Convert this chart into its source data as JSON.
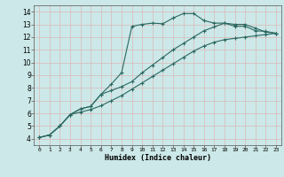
{
  "xlabel": "Humidex (Indice chaleur)",
  "bg_color": "#cce8e8",
  "grid_color": "#ddb8b8",
  "line_color": "#2a6860",
  "xlim": [
    -0.5,
    23.5
  ],
  "ylim": [
    3.5,
    14.5
  ],
  "xticks": [
    0,
    1,
    2,
    3,
    4,
    5,
    6,
    7,
    8,
    9,
    10,
    11,
    12,
    13,
    14,
    15,
    16,
    17,
    18,
    19,
    20,
    21,
    22,
    23
  ],
  "yticks": [
    4,
    5,
    6,
    7,
    8,
    9,
    10,
    11,
    12,
    13,
    14
  ],
  "line1_x": [
    0,
    1,
    2,
    3,
    4,
    5,
    6,
    7,
    8,
    9,
    10,
    11,
    12,
    13,
    14,
    15,
    16,
    17,
    18,
    19,
    20,
    21,
    22,
    23
  ],
  "line1_y": [
    4.1,
    4.3,
    5.0,
    5.9,
    6.35,
    6.55,
    7.5,
    8.3,
    9.2,
    12.85,
    13.0,
    13.1,
    13.05,
    13.5,
    13.85,
    13.85,
    13.3,
    13.1,
    13.1,
    12.85,
    12.85,
    12.5,
    12.45,
    12.3
  ],
  "line2_x": [
    0,
    1,
    2,
    3,
    4,
    5,
    6,
    7,
    8,
    9,
    10,
    11,
    12,
    13,
    14,
    15,
    16,
    17,
    18,
    19,
    20,
    21,
    22,
    23
  ],
  "line2_y": [
    4.1,
    4.3,
    5.0,
    5.9,
    6.35,
    6.55,
    7.5,
    7.8,
    8.1,
    8.5,
    9.2,
    9.8,
    10.4,
    11.0,
    11.5,
    12.0,
    12.5,
    12.8,
    13.1,
    13.0,
    13.0,
    12.7,
    12.4,
    12.3
  ],
  "line3_x": [
    0,
    1,
    2,
    3,
    4,
    5,
    6,
    7,
    8,
    9,
    10,
    11,
    12,
    13,
    14,
    15,
    16,
    17,
    18,
    19,
    20,
    21,
    22,
    23
  ],
  "line3_y": [
    4.1,
    4.3,
    5.0,
    5.9,
    6.1,
    6.3,
    6.6,
    7.0,
    7.4,
    7.9,
    8.4,
    8.9,
    9.4,
    9.9,
    10.4,
    10.9,
    11.3,
    11.6,
    11.8,
    11.9,
    12.0,
    12.1,
    12.2,
    12.3
  ]
}
